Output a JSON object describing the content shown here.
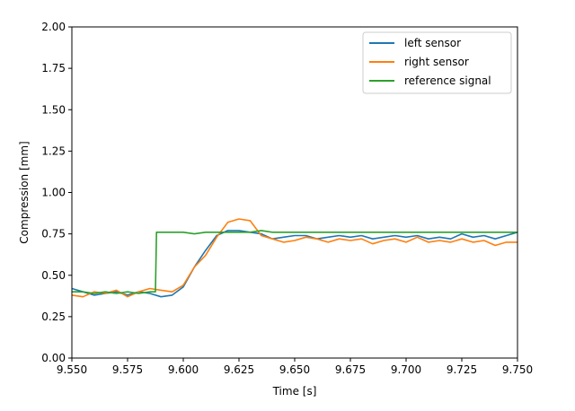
{
  "chart_data": {
    "type": "line",
    "xlabel": "Time [s]",
    "ylabel": "Compression [mm]",
    "xlim": [
      9.55,
      9.75
    ],
    "ylim": [
      0.0,
      2.0
    ],
    "xticks": [
      "9.550",
      "9.575",
      "9.600",
      "9.625",
      "9.650",
      "9.675",
      "9.700",
      "9.725",
      "9.750"
    ],
    "yticks": [
      "0.00",
      "0.25",
      "0.50",
      "0.75",
      "1.00",
      "1.25",
      "1.50",
      "1.75",
      "2.00"
    ],
    "grid": false,
    "legend_position": "top-right",
    "series": [
      {
        "name": "left sensor",
        "color": "#1f77b4",
        "x": [
          9.55,
          9.555,
          9.56,
          9.565,
          9.57,
          9.575,
          9.58,
          9.585,
          9.59,
          9.595,
          9.6,
          9.605,
          9.61,
          9.615,
          9.62,
          9.625,
          9.63,
          9.635,
          9.64,
          9.645,
          9.65,
          9.655,
          9.66,
          9.665,
          9.67,
          9.675,
          9.68,
          9.685,
          9.69,
          9.695,
          9.7,
          9.705,
          9.71,
          9.715,
          9.72,
          9.725,
          9.73,
          9.735,
          9.74,
          9.745,
          9.75
        ],
        "y": [
          0.42,
          0.4,
          0.38,
          0.39,
          0.4,
          0.38,
          0.4,
          0.39,
          0.37,
          0.38,
          0.43,
          0.55,
          0.65,
          0.74,
          0.77,
          0.77,
          0.76,
          0.75,
          0.72,
          0.73,
          0.74,
          0.74,
          0.72,
          0.73,
          0.74,
          0.73,
          0.74,
          0.72,
          0.73,
          0.74,
          0.73,
          0.74,
          0.72,
          0.73,
          0.72,
          0.75,
          0.73,
          0.74,
          0.72,
          0.74,
          0.76
        ]
      },
      {
        "name": "right sensor",
        "color": "#ff7f0e",
        "x": [
          9.55,
          9.555,
          9.56,
          9.565,
          9.57,
          9.575,
          9.58,
          9.585,
          9.59,
          9.595,
          9.6,
          9.605,
          9.61,
          9.615,
          9.62,
          9.625,
          9.63,
          9.635,
          9.64,
          9.645,
          9.65,
          9.655,
          9.66,
          9.665,
          9.67,
          9.675,
          9.68,
          9.685,
          9.69,
          9.695,
          9.7,
          9.705,
          9.71,
          9.715,
          9.72,
          9.725,
          9.73,
          9.735,
          9.74,
          9.745,
          9.75
        ],
        "y": [
          0.38,
          0.37,
          0.4,
          0.39,
          0.41,
          0.37,
          0.4,
          0.42,
          0.41,
          0.4,
          0.44,
          0.55,
          0.62,
          0.73,
          0.82,
          0.84,
          0.83,
          0.74,
          0.72,
          0.7,
          0.71,
          0.73,
          0.72,
          0.7,
          0.72,
          0.71,
          0.72,
          0.69,
          0.71,
          0.72,
          0.7,
          0.73,
          0.7,
          0.71,
          0.7,
          0.72,
          0.7,
          0.71,
          0.68,
          0.7,
          0.7
        ]
      },
      {
        "name": "reference signal",
        "color": "#2ca02c",
        "x": [
          9.55,
          9.555,
          9.56,
          9.565,
          9.57,
          9.575,
          9.58,
          9.585,
          9.5875,
          9.588,
          9.59,
          9.595,
          9.6,
          9.605,
          9.61,
          9.615,
          9.62,
          9.625,
          9.63,
          9.635,
          9.64,
          9.645,
          9.65,
          9.655,
          9.66,
          9.665,
          9.67,
          9.675,
          9.68,
          9.685,
          9.69,
          9.695,
          9.7,
          9.705,
          9.71,
          9.715,
          9.72,
          9.725,
          9.73,
          9.735,
          9.74,
          9.745,
          9.75
        ],
        "y": [
          0.4,
          0.4,
          0.39,
          0.4,
          0.39,
          0.4,
          0.39,
          0.4,
          0.4,
          0.76,
          0.76,
          0.76,
          0.76,
          0.75,
          0.76,
          0.76,
          0.76,
          0.76,
          0.76,
          0.77,
          0.76,
          0.76,
          0.76,
          0.76,
          0.76,
          0.76,
          0.76,
          0.76,
          0.76,
          0.76,
          0.76,
          0.76,
          0.76,
          0.76,
          0.76,
          0.76,
          0.76,
          0.76,
          0.76,
          0.76,
          0.76,
          0.76,
          0.76
        ]
      }
    ]
  }
}
